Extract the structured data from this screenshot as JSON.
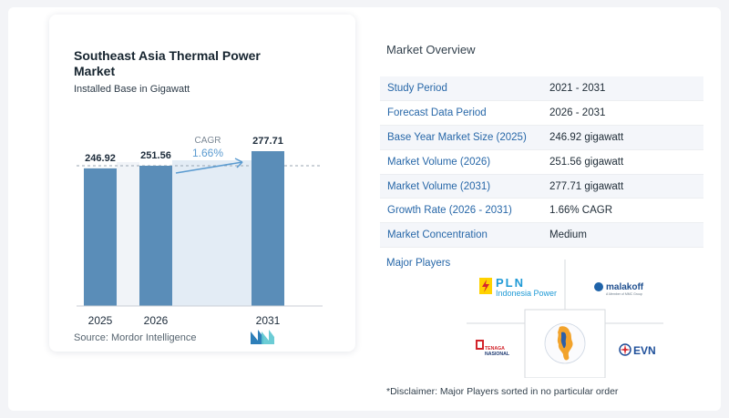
{
  "colors": {
    "bar": "#5a8db8",
    "cagr_band": "#e3ecf5",
    "cagr_text": "#5b9bd0",
    "label_blue": "#2767a8",
    "pln_yellow": "#ffd200",
    "evn_red": "#d7262d",
    "evn_blue": "#1e4f9a",
    "tnb_red": "#d2232a"
  },
  "chart": {
    "title": "Southeast Asia Thermal Power Market",
    "subtitle": "Installed Base in Gigawatt",
    "source": "Source:  Mordor Intelligence",
    "cagr_label": "CAGR",
    "cagr_value": "1.66%",
    "logo_icon": "mordor-intelligence-logo-icon"
  },
  "chart_data": {
    "type": "bar",
    "categories": [
      "2025",
      "2026",
      "2031"
    ],
    "values": [
      246.92,
      251.56,
      277.71
    ],
    "value_labels": [
      "246.92",
      "251.56",
      "277.71"
    ],
    "title": "Southeast Asia Thermal Power Market",
    "subtitle": "Installed Base in Gigawatt",
    "xlabel": "",
    "ylabel": "",
    "grid": false,
    "annotations": [
      "CAGR",
      "1.66%"
    ]
  },
  "overview": {
    "title": "Market Overview",
    "rows": [
      {
        "label": "Study Period",
        "value": "2021 - 2031"
      },
      {
        "label": "Forecast Data Period",
        "value": "2026 - 2031"
      },
      {
        "label": "Base Year Market Size (2025)",
        "value": "246.92 gigawatt"
      },
      {
        "label": "Market Volume (2026)",
        "value": "251.56 gigawatt"
      },
      {
        "label": "Market Volume (2031)",
        "value": "277.71 gigawatt"
      },
      {
        "label": "Growth Rate (2026 - 2031)",
        "value": "1.66% CAGR"
      },
      {
        "label": "Market Concentration",
        "value": "Medium"
      }
    ]
  },
  "players": {
    "title": "Major Players",
    "pln_name": "PLN",
    "pln_sub": "Indonesia Power",
    "malakoff_name": "malakoff",
    "malakoff_sub": "A Member of MMC Group",
    "tnb_line1": "TENAGA",
    "tnb_line2": "NASIONAL",
    "evn_name": "EVN",
    "center_logo_icon": "egat-logo-icon"
  },
  "disclaimer": "*Disclaimer: Major Players sorted in no particular order"
}
